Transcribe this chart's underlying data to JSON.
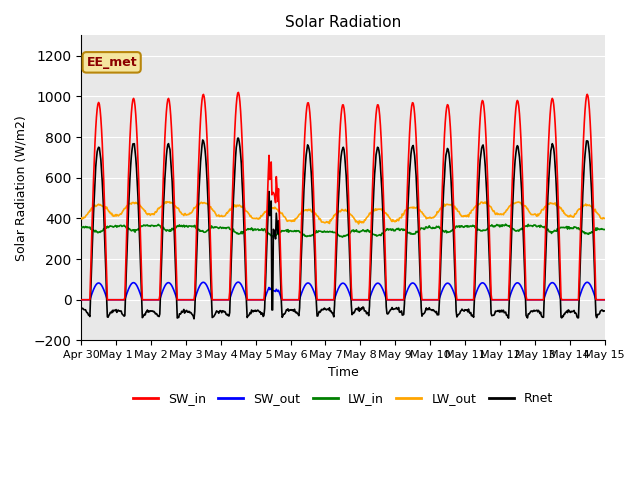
{
  "title": "Solar Radiation",
  "ylabel": "Solar Radiation (W/m2)",
  "xlabel": "Time",
  "ylim": [
    -200,
    1300
  ],
  "yticks": [
    -200,
    0,
    200,
    400,
    600,
    800,
    1000,
    1200
  ],
  "annotation_text": "EE_met",
  "legend_entries": [
    "SW_in",
    "SW_out",
    "LW_in",
    "LW_out",
    "Rnet"
  ],
  "legend_colors": [
    "red",
    "blue",
    "green",
    "orange",
    "black"
  ],
  "background_color": "#e8e8e8",
  "n_days": 15,
  "start_label": "Apr 30",
  "day_labels": [
    "May 1",
    "May 2",
    "May 3",
    "May 4",
    "May 5",
    "May 6",
    "May 7",
    "May 8",
    "May 9",
    "May 10",
    "May 11",
    "May 12",
    "May 13",
    "May 14",
    "May 15"
  ]
}
